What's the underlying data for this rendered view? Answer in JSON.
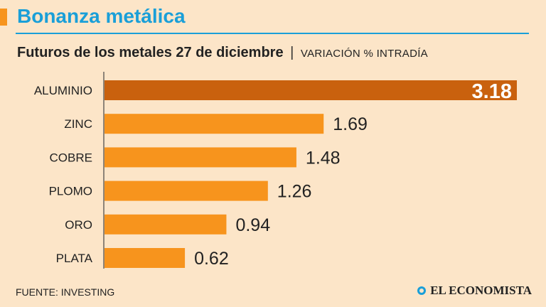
{
  "header": {
    "title": "Bonanza metálica",
    "subtitle": "Futuros de los metales 27 de diciembre",
    "separator": "|",
    "unit_label": "VARIACIÓN % INTRADÍA"
  },
  "footer": {
    "source": "FUENTE: INVESTING",
    "brand": "EL ECONOMISTA"
  },
  "colors": {
    "background": "#fce5c8",
    "bar": "#f7941d",
    "highlight_bar": "#c9610e",
    "title": "#1a9fd8"
  },
  "chart_data": {
    "type": "bar",
    "orientation": "horizontal",
    "title": "Futuros de los metales 27 de diciembre",
    "xlabel": "VARIACIÓN % INTRADÍA",
    "ylabel": "",
    "categories": [
      "ALUMINIO",
      "ZINC",
      "COBRE",
      "PLOMO",
      "ORO",
      "PLATA"
    ],
    "values": [
      3.18,
      1.69,
      1.48,
      1.26,
      0.94,
      0.62
    ],
    "labels": [
      "3.18",
      "1.69",
      "1.48",
      "1.26",
      "0.94",
      "0.62"
    ],
    "highlight_index": 0,
    "xlim": [
      0,
      3.18
    ],
    "grid": false
  }
}
